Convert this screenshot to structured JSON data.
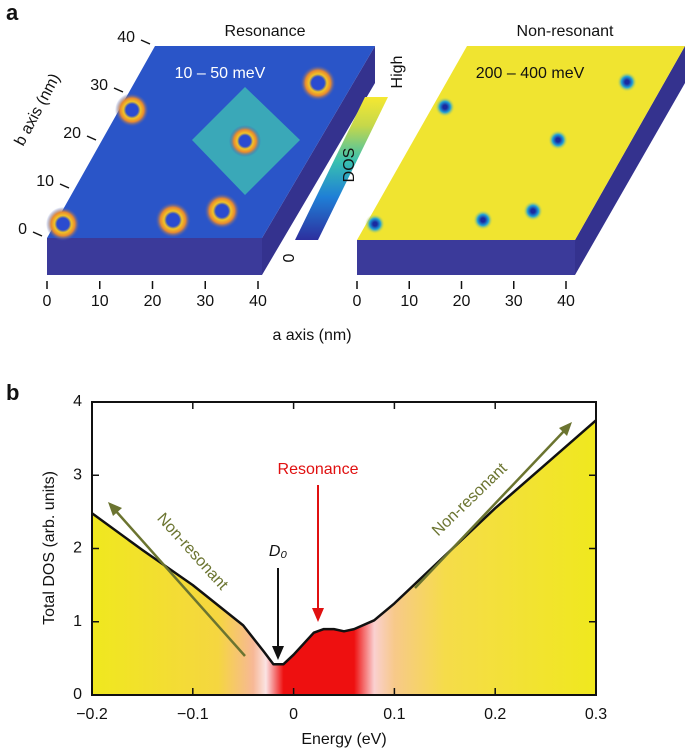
{
  "panel_a": {
    "label": "a",
    "maps": [
      {
        "title": "Resonance",
        "energy_range": "10 – 50 meV"
      },
      {
        "title": "Non-resonant",
        "energy_range": "200 – 400 meV"
      }
    ],
    "colorbar": {
      "high": "High",
      "label": "DOS",
      "low": 0
    },
    "a_axis": {
      "label": "a axis (nm)",
      "lim": [
        0,
        40
      ],
      "ticks": [
        0,
        10,
        20,
        30,
        40
      ]
    },
    "b_axis": {
      "label": "b axis (nm)",
      "lim": [
        0,
        40
      ],
      "ticks": [
        0,
        10,
        20,
        30,
        40
      ]
    }
  },
  "panel_b": {
    "label": "b"
  },
  "chart_data": {
    "type": "line",
    "x_label": "Energy (eV)",
    "y_label": "Total DOS (arb. units)",
    "x": [
      -0.2,
      -0.15,
      -0.1,
      -0.05,
      -0.03,
      -0.02,
      -0.01,
      0,
      0.01,
      0.02,
      0.03,
      0.04,
      0.05,
      0.06,
      0.08,
      0.1,
      0.15,
      0.2,
      0.25,
      0.3
    ],
    "values": [
      2.48,
      1.98,
      1.5,
      0.95,
      0.6,
      0.42,
      0.42,
      0.55,
      0.7,
      0.85,
      0.9,
      0.9,
      0.87,
      0.9,
      1.02,
      1.25,
      1.9,
      2.55,
      3.15,
      3.75
    ],
    "color": "#111111",
    "xlim": [
      -0.2,
      0.3
    ],
    "ylim": [
      0,
      4
    ],
    "xticks": [
      {
        "value": -0.2,
        "label": "−0.2"
      },
      {
        "value": -0.1,
        "label": "−0.1"
      },
      0,
      0.1,
      0.2,
      0.3
    ],
    "yticks": [
      0,
      1,
      2,
      3,
      4
    ],
    "annotations": [
      "Resonance",
      "D₀",
      "Non-resonant",
      "Non-resonant"
    ]
  }
}
